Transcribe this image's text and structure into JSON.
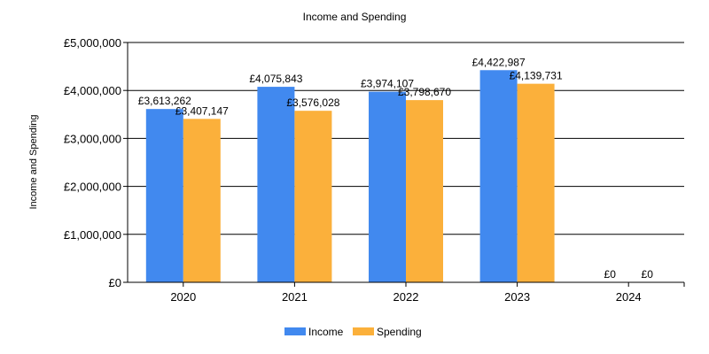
{
  "chart_data": {
    "type": "bar",
    "title": "Income and Spending",
    "xlabel": "",
    "ylabel": "Income and Spending",
    "categories": [
      "2020",
      "2021",
      "2022",
      "2023",
      "2024"
    ],
    "series": [
      {
        "name": "Income",
        "color": "#4189ef",
        "values": [
          3613262,
          4075843,
          3974107,
          4422987,
          0
        ],
        "labels": [
          "£3,613,262",
          "£4,075,843",
          "£3,974,107",
          "£4,422,987",
          "£0"
        ]
      },
      {
        "name": "Spending",
        "color": "#fbb03b",
        "values": [
          3407147,
          3576028,
          3798670,
          4139731,
          0
        ],
        "labels": [
          "£3,407,147",
          "£3,576,028",
          "£3,798,670",
          "£4,139,731",
          "£0"
        ]
      }
    ],
    "ylim": [
      0,
      5000000
    ],
    "yticks": [
      0,
      1000000,
      2000000,
      3000000,
      4000000,
      5000000
    ],
    "ytick_labels": [
      "£0",
      "£1,000,000",
      "£2,000,000",
      "£3,000,000",
      "£4,000,000",
      "£5,000,000"
    ],
    "grid": "horizontal",
    "legend": "bottom"
  }
}
